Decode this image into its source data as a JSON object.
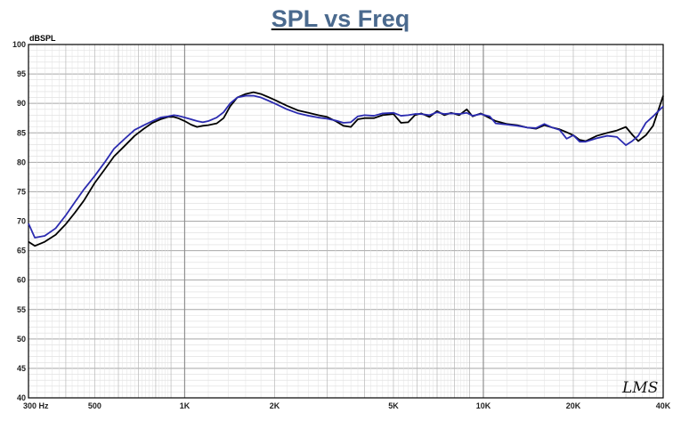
{
  "chart_data": {
    "type": "line",
    "title": "SPL vs Freq",
    "ylabel": "dBSPL",
    "xlabel": "",
    "xscale": "log",
    "xlim": [
      300,
      40000
    ],
    "ylim": [
      40,
      100
    ],
    "yticks": [
      40,
      45,
      50,
      55,
      60,
      65,
      70,
      75,
      80,
      85,
      90,
      95,
      100
    ],
    "xtick_labels": [
      {
        "value": 300,
        "label": "300  Hz"
      },
      {
        "value": 500,
        "label": "500"
      },
      {
        "value": 1000,
        "label": "1K"
      },
      {
        "value": 2000,
        "label": "2K"
      },
      {
        "value": 5000,
        "label": "5K"
      },
      {
        "value": 10000,
        "label": "10K"
      },
      {
        "value": 20000,
        "label": "20K"
      },
      {
        "value": 40000,
        "label": "40K"
      }
    ],
    "grid": true,
    "watermark": "LMS",
    "series": [
      {
        "color": "#000000",
        "points": [
          [
            300,
            66.5
          ],
          [
            315,
            65.8
          ],
          [
            340,
            66.5
          ],
          [
            370,
            67.7
          ],
          [
            400,
            69.5
          ],
          [
            430,
            71.5
          ],
          [
            460,
            73.5
          ],
          [
            500,
            76.5
          ],
          [
            540,
            78.8
          ],
          [
            580,
            81.0
          ],
          [
            630,
            82.8
          ],
          [
            680,
            84.5
          ],
          [
            730,
            85.7
          ],
          [
            780,
            86.7
          ],
          [
            830,
            87.3
          ],
          [
            880,
            87.7
          ],
          [
            920,
            87.7
          ],
          [
            950,
            87.5
          ],
          [
            1000,
            87.0
          ],
          [
            1050,
            86.4
          ],
          [
            1100,
            86.0
          ],
          [
            1150,
            86.2
          ],
          [
            1200,
            86.3
          ],
          [
            1280,
            86.6
          ],
          [
            1350,
            87.5
          ],
          [
            1420,
            89.5
          ],
          [
            1500,
            91.0
          ],
          [
            1600,
            91.6
          ],
          [
            1700,
            91.9
          ],
          [
            1800,
            91.6
          ],
          [
            1900,
            91.1
          ],
          [
            2000,
            90.6
          ],
          [
            2200,
            89.6
          ],
          [
            2400,
            88.8
          ],
          [
            2600,
            88.4
          ],
          [
            2800,
            88.0
          ],
          [
            3000,
            87.7
          ],
          [
            3200,
            87.0
          ],
          [
            3400,
            86.2
          ],
          [
            3600,
            86.0
          ],
          [
            3800,
            87.3
          ],
          [
            4000,
            87.5
          ],
          [
            4300,
            87.5
          ],
          [
            4600,
            88.0
          ],
          [
            5000,
            88.2
          ],
          [
            5300,
            86.7
          ],
          [
            5600,
            86.8
          ],
          [
            5900,
            88.0
          ],
          [
            6200,
            88.3
          ],
          [
            6600,
            87.7
          ],
          [
            7000,
            88.7
          ],
          [
            7400,
            88.0
          ],
          [
            7800,
            88.4
          ],
          [
            8300,
            88.0
          ],
          [
            8800,
            89.0
          ],
          [
            9200,
            87.8
          ],
          [
            9800,
            88.3
          ],
          [
            10500,
            87.5
          ],
          [
            11000,
            87.0
          ],
          [
            12000,
            86.5
          ],
          [
            13000,
            86.3
          ],
          [
            14000,
            85.9
          ],
          [
            15000,
            85.7
          ],
          [
            16000,
            86.3
          ],
          [
            17000,
            85.9
          ],
          [
            18000,
            85.6
          ],
          [
            19000,
            85.1
          ],
          [
            20000,
            84.6
          ],
          [
            21000,
            83.8
          ],
          [
            22000,
            83.6
          ],
          [
            24000,
            84.5
          ],
          [
            26000,
            85.0
          ],
          [
            28000,
            85.4
          ],
          [
            30000,
            86.0
          ],
          [
            31500,
            84.7
          ],
          [
            33000,
            83.6
          ],
          [
            35000,
            84.6
          ],
          [
            37000,
            86.2
          ],
          [
            40000,
            91.3
          ]
        ]
      },
      {
        "color": "#2b2bb0",
        "points": [
          [
            300,
            69.6
          ],
          [
            315,
            67.2
          ],
          [
            340,
            67.5
          ],
          [
            370,
            68.8
          ],
          [
            400,
            71.0
          ],
          [
            430,
            73.3
          ],
          [
            460,
            75.4
          ],
          [
            500,
            77.7
          ],
          [
            540,
            80.0
          ],
          [
            580,
            82.3
          ],
          [
            630,
            84.0
          ],
          [
            680,
            85.5
          ],
          [
            730,
            86.3
          ],
          [
            780,
            87.0
          ],
          [
            830,
            87.6
          ],
          [
            880,
            87.8
          ],
          [
            920,
            88.0
          ],
          [
            950,
            87.9
          ],
          [
            1000,
            87.6
          ],
          [
            1050,
            87.3
          ],
          [
            1100,
            87.0
          ],
          [
            1150,
            86.8
          ],
          [
            1200,
            87.0
          ],
          [
            1280,
            87.6
          ],
          [
            1350,
            88.5
          ],
          [
            1420,
            90.0
          ],
          [
            1500,
            91.0
          ],
          [
            1600,
            91.3
          ],
          [
            1700,
            91.3
          ],
          [
            1800,
            91.0
          ],
          [
            1900,
            90.5
          ],
          [
            2000,
            90.0
          ],
          [
            2200,
            89.0
          ],
          [
            2400,
            88.3
          ],
          [
            2600,
            87.9
          ],
          [
            2800,
            87.6
          ],
          [
            3000,
            87.4
          ],
          [
            3200,
            87.1
          ],
          [
            3400,
            86.7
          ],
          [
            3600,
            86.8
          ],
          [
            3800,
            87.8
          ],
          [
            4000,
            88.0
          ],
          [
            4300,
            87.9
          ],
          [
            4600,
            88.3
          ],
          [
            5000,
            88.4
          ],
          [
            5300,
            87.9
          ],
          [
            5600,
            88.0
          ],
          [
            5900,
            88.2
          ],
          [
            6200,
            88.2
          ],
          [
            6600,
            88.0
          ],
          [
            7000,
            88.5
          ],
          [
            7400,
            88.2
          ],
          [
            7800,
            88.3
          ],
          [
            8300,
            88.2
          ],
          [
            8800,
            88.4
          ],
          [
            9200,
            87.9
          ],
          [
            9800,
            88.2
          ],
          [
            10500,
            87.8
          ],
          [
            11000,
            86.6
          ],
          [
            12000,
            86.4
          ],
          [
            13000,
            86.2
          ],
          [
            14000,
            85.9
          ],
          [
            15000,
            85.8
          ],
          [
            16000,
            86.5
          ],
          [
            17000,
            85.9
          ],
          [
            18000,
            85.5
          ],
          [
            19000,
            84.0
          ],
          [
            20000,
            84.6
          ],
          [
            21000,
            83.5
          ],
          [
            22000,
            83.5
          ],
          [
            24000,
            84.1
          ],
          [
            26000,
            84.5
          ],
          [
            28000,
            84.3
          ],
          [
            30000,
            82.9
          ],
          [
            31500,
            83.6
          ],
          [
            33000,
            84.5
          ],
          [
            35000,
            86.7
          ],
          [
            37000,
            87.8
          ],
          [
            40000,
            89.5
          ]
        ]
      }
    ]
  }
}
